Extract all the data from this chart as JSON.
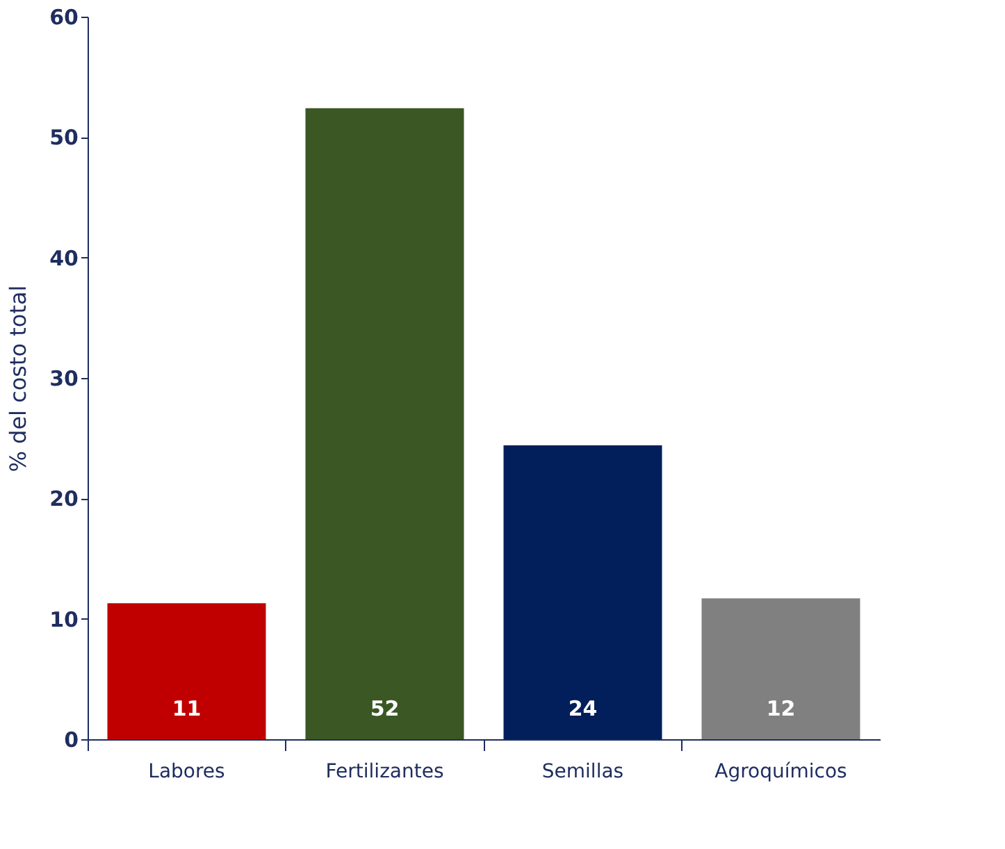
{
  "chart_data": {
    "type": "bar",
    "ylabel": "% del costo total",
    "categories": [
      "Labores",
      "Fertilizantes",
      "Semillas",
      "Agroquímicos"
    ],
    "values": [
      11.3,
      52.4,
      24.4,
      11.7
    ],
    "colors": [
      "#c00000",
      "#3b5724",
      "#021f5c",
      "#808080"
    ],
    "value_labels": [
      "11",
      "52",
      "24",
      "12"
    ],
    "ylim": [
      0,
      60
    ],
    "yticks": [
      0,
      10,
      20,
      30,
      40,
      50,
      60
    ],
    "grid": false
  }
}
